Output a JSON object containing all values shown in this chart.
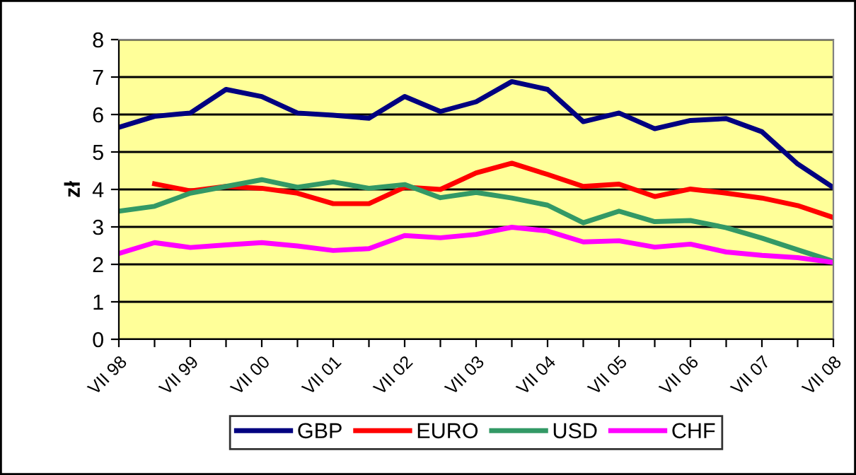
{
  "chart_data": {
    "type": "line",
    "ylabel": "zł",
    "categories": [
      "VII 98",
      null,
      "VII 99",
      null,
      "VII 00",
      null,
      "VII 01",
      null,
      "VII 02",
      null,
      "VII 03",
      null,
      "VII 04",
      null,
      "VII 05",
      null,
      "VII 06",
      null,
      "VII 07",
      null,
      "VII 08"
    ],
    "series": [
      {
        "name": "GBP",
        "color": "#000080",
        "values": [
          5.66,
          5.95,
          6.04,
          6.67,
          6.48,
          6.04,
          5.98,
          5.9,
          6.48,
          6.08,
          6.34,
          6.88,
          6.67,
          5.81,
          6.04,
          5.62,
          5.84,
          5.89,
          5.54,
          4.68,
          4.05
        ]
      },
      {
        "name": "EURO",
        "color": "#ff0000",
        "values": [
          null,
          4.15,
          3.96,
          4.08,
          4.03,
          3.9,
          3.62,
          3.62,
          4.06,
          4.0,
          4.44,
          4.7,
          4.4,
          4.08,
          4.14,
          3.81,
          4.01,
          3.9,
          3.77,
          3.57,
          3.25
        ]
      },
      {
        "name": "USD",
        "color": "#339966",
        "values": [
          3.42,
          3.55,
          3.9,
          4.08,
          4.26,
          4.06,
          4.2,
          4.03,
          4.13,
          3.78,
          3.92,
          3.77,
          3.58,
          3.11,
          3.42,
          3.14,
          3.17,
          2.98,
          2.7,
          2.39,
          2.08
        ]
      },
      {
        "name": "CHF",
        "color": "#ff00ff",
        "values": [
          2.29,
          2.58,
          2.45,
          2.52,
          2.58,
          2.49,
          2.37,
          2.42,
          2.77,
          2.71,
          2.8,
          2.99,
          2.89,
          2.6,
          2.63,
          2.46,
          2.54,
          2.33,
          2.24,
          2.18,
          2.05
        ]
      }
    ],
    "ylim": [
      0,
      8
    ],
    "yticks": [
      0,
      1,
      2,
      3,
      4,
      5,
      6,
      7,
      8
    ],
    "grid": "y",
    "legend": "bottom",
    "marker": "none",
    "line_style": "solid"
  }
}
